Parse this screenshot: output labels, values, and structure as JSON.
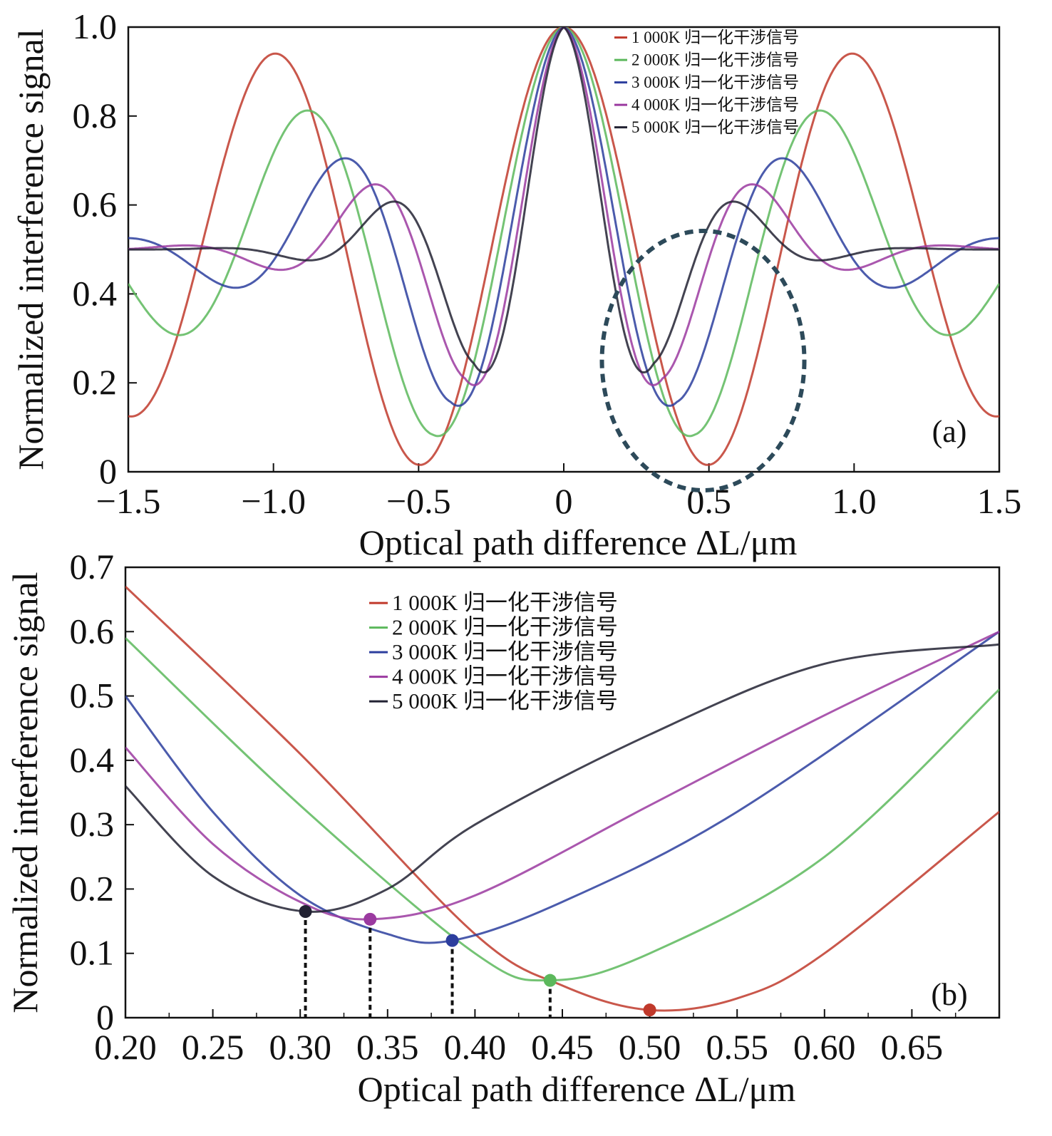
{
  "chart_data": [
    {
      "panel": "a",
      "type": "line",
      "panel_label": "(a)",
      "xlabel": "Optical path difference ΔL/μm",
      "ylabel": "Normalized interference signal",
      "xlim": [
        -1.5,
        1.5
      ],
      "ylim": [
        0,
        1.0
      ],
      "x_ticks": [
        -1.5,
        -1.0,
        -0.5,
        0,
        0.5,
        1.0,
        1.5
      ],
      "x_tick_labels": [
        "−1.5",
        "−1.0",
        "−0.5",
        "0",
        "0.5",
        "1.0",
        "1.5"
      ],
      "y_ticks": [
        0,
        0.2,
        0.4,
        0.6,
        0.8,
        1.0
      ],
      "y_tick_labels": [
        "0",
        "0.2",
        "0.4",
        "0.6",
        "0.8",
        "1.0"
      ],
      "legend_position": "top-right",
      "annotation": "dashed circle around the first minima near ΔL = 0.5",
      "series": [
        {
          "name": "1 000K 归一化干涉信号",
          "color": "#c0392b",
          "first_min_x": 0.5,
          "first_min_y": 0.0,
          "side_peak_x": 1.0,
          "side_peak_y": 0.94
        },
        {
          "name": "2 000K 归一化干涉信号",
          "color": "#5cb85c",
          "first_min_x": 0.45,
          "first_min_y": 0.04,
          "side_peak_x": 0.93,
          "side_peak_y": 0.81
        },
        {
          "name": "3 000K 归一化干涉信号",
          "color": "#2c3e9e",
          "first_min_x": 0.39,
          "first_min_y": 0.09,
          "side_peak_x": 0.87,
          "side_peak_y": 0.7
        },
        {
          "name": "4 000K 归一化干涉信号",
          "color": "#9b3aa0",
          "first_min_x": 0.34,
          "first_min_y": 0.13,
          "side_peak_x": 0.86,
          "side_peak_y": 0.64
        },
        {
          "name": "5 000K 归一化干涉信号",
          "color": "#222233",
          "first_min_x": 0.31,
          "first_min_y": 0.15,
          "side_peak_x": 0.83,
          "side_peak_y": 0.6
        }
      ]
    },
    {
      "panel": "b",
      "type": "line",
      "panel_label": "(b)",
      "xlabel": "Optical path difference ΔL/μm",
      "ylabel": "Normalized interference signal",
      "xlim": [
        0.2,
        0.7
      ],
      "ylim": [
        0,
        0.7
      ],
      "x_ticks": [
        0.2,
        0.25,
        0.3,
        0.35,
        0.4,
        0.45,
        0.5,
        0.55,
        0.6,
        0.65
      ],
      "x_tick_labels": [
        "0.20",
        "0.25",
        "0.30",
        "0.35",
        "0.40",
        "0.45",
        "0.50",
        "0.55",
        "0.60",
        "0.65"
      ],
      "y_ticks": [
        0,
        0.1,
        0.2,
        0.3,
        0.4,
        0.5,
        0.6,
        0.7
      ],
      "y_tick_labels": [
        "0",
        "0.1",
        "0.2",
        "0.3",
        "0.4",
        "0.5",
        "0.6",
        "0.7"
      ],
      "legend_position": "top-center",
      "series": [
        {
          "name": "1 000K 归一化干涉信号",
          "color": "#c0392b",
          "min_marker": {
            "x": 0.5,
            "y": 0.012
          },
          "points": [
            [
              0.2,
              0.67
            ],
            [
              0.3,
              0.41
            ],
            [
              0.4,
              0.13
            ],
            [
              0.45,
              0.05
            ],
            [
              0.5,
              0.012
            ],
            [
              0.55,
              0.03
            ],
            [
              0.6,
              0.1
            ],
            [
              0.7,
              0.32
            ]
          ]
        },
        {
          "name": "2 000K 归一化干涉信号",
          "color": "#5cb85c",
          "min_marker": {
            "x": 0.443,
            "y": 0.058
          },
          "points": [
            [
              0.2,
              0.59
            ],
            [
              0.3,
              0.33
            ],
            [
              0.4,
              0.1
            ],
            [
              0.443,
              0.058
            ],
            [
              0.5,
              0.1
            ],
            [
              0.6,
              0.25
            ],
            [
              0.7,
              0.51
            ]
          ]
        },
        {
          "name": "3 000K 归一化干涉信号",
          "color": "#2c3e9e",
          "min_marker": {
            "x": 0.387,
            "y": 0.12
          },
          "points": [
            [
              0.2,
              0.5
            ],
            [
              0.25,
              0.32
            ],
            [
              0.3,
              0.19
            ],
            [
              0.35,
              0.13
            ],
            [
              0.387,
              0.12
            ],
            [
              0.45,
              0.18
            ],
            [
              0.55,
              0.32
            ],
            [
              0.7,
              0.6
            ]
          ]
        },
        {
          "name": "4 000K 归一化干涉信号",
          "color": "#9b3aa0",
          "min_marker": {
            "x": 0.34,
            "y": 0.153
          },
          "points": [
            [
              0.2,
              0.42
            ],
            [
              0.25,
              0.27
            ],
            [
              0.3,
              0.18
            ],
            [
              0.34,
              0.153
            ],
            [
              0.4,
              0.19
            ],
            [
              0.5,
              0.33
            ],
            [
              0.6,
              0.47
            ],
            [
              0.7,
              0.6
            ]
          ]
        },
        {
          "name": "5 000K 归一化干涉信号",
          "color": "#222233",
          "min_marker": {
            "x": 0.303,
            "y": 0.165
          },
          "points": [
            [
              0.2,
              0.36
            ],
            [
              0.25,
              0.22
            ],
            [
              0.303,
              0.165
            ],
            [
              0.35,
              0.2
            ],
            [
              0.4,
              0.3
            ],
            [
              0.5,
              0.44
            ],
            [
              0.6,
              0.55
            ],
            [
              0.7,
              0.58
            ]
          ]
        }
      ]
    }
  ]
}
